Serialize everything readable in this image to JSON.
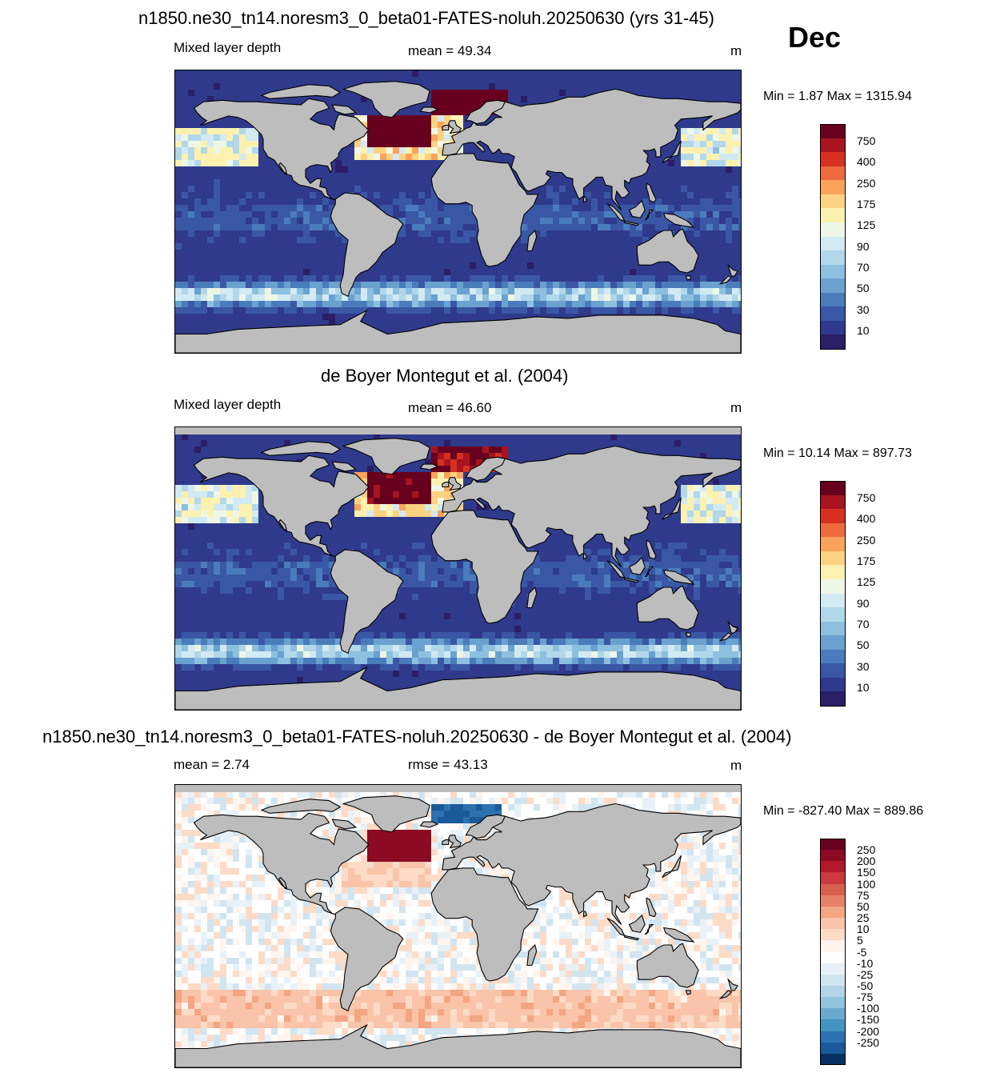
{
  "month": "Dec",
  "units": "m",
  "panels": [
    {
      "title": "n1850.ne30_tn14.noresm3_0_beta01-FATES-noluh.20250630 (yrs 31-45)",
      "left_label": "Mixed layer depth",
      "center_label": "mean =  49.34",
      "right_label": "m",
      "minmax": "Min =   1.87 Max = 1315.94",
      "palette": "mld",
      "field": "model",
      "colorbar_labels": [
        "750",
        "400",
        "250",
        "175",
        "125",
        "90",
        "70",
        "50",
        "30",
        "10"
      ],
      "colorbar_colors": [
        "#67001f",
        "#a8141f",
        "#d6301f",
        "#ee6a3f",
        "#fba35b",
        "#fdd283",
        "#fdf1b0",
        "#eef7e6",
        "#d2eaf3",
        "#b1d8ea",
        "#8dc0df",
        "#6aa1cf",
        "#4a7cbc",
        "#3a57a6",
        "#2f3a8c",
        "#2b1e67"
      ]
    },
    {
      "title": "de Boyer Montegut et al. (2004)",
      "left_label": "Mixed layer depth",
      "center_label": "mean =  46.60",
      "right_label": "m",
      "minmax": "Min =  10.14 Max = 897.73",
      "palette": "mld",
      "field": "obs",
      "colorbar_labels": [
        "750",
        "400",
        "250",
        "175",
        "125",
        "90",
        "70",
        "50",
        "30",
        "10"
      ],
      "colorbar_colors": [
        "#67001f",
        "#a8141f",
        "#d6301f",
        "#ee6a3f",
        "#fba35b",
        "#fdd283",
        "#fdf1b0",
        "#eef7e6",
        "#d2eaf3",
        "#b1d8ea",
        "#8dc0df",
        "#6aa1cf",
        "#4a7cbc",
        "#3a57a6",
        "#2f3a8c",
        "#2b1e67"
      ]
    },
    {
      "title": "n1850.ne30_tn14.noresm3_0_beta01-FATES-noluh.20250630 - de Boyer Montegut et al. (2004)",
      "left_label": "mean =    2.74",
      "center_label": "rmse =  43.13",
      "right_label": "m",
      "minmax": "Min = -827.40 Max = 889.86",
      "palette": "diff",
      "field": "diff",
      "colorbar_labels": [
        "250",
        "200",
        "150",
        "100",
        "75",
        "50",
        "25",
        "10",
        "5",
        "-5",
        "-10",
        "-25",
        "-50",
        "-75",
        "-100",
        "-150",
        "-200",
        "-250"
      ],
      "colorbar_colors": [
        "#67001f",
        "#8c0a24",
        "#b2182b",
        "#c9393e",
        "#d6604d",
        "#e58268",
        "#f4a582",
        "#f9c4a9",
        "#fddbc7",
        "#fff5ef",
        "#ffffff",
        "#e8f1f7",
        "#d1e5f0",
        "#b4d5e8",
        "#92c5de",
        "#6aa9d0",
        "#4393c3",
        "#2c72b0",
        "#1b5a9a",
        "#053061"
      ]
    }
  ]
}
